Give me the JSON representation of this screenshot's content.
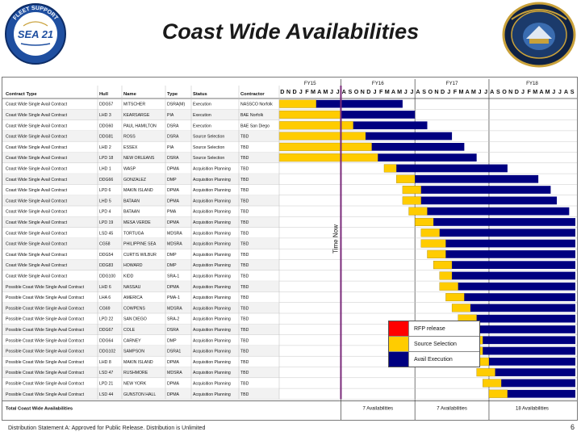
{
  "title": "Coast Wide Availabilities",
  "logos": {
    "left": {
      "top_text": "FLEET SUPPORT",
      "center_text": "SEA 21",
      "bottom_text": "INACTIVE SHIPS",
      "side_text": "INTERNATIONAL"
    },
    "right": {
      "name": "navsea-seal-icon"
    }
  },
  "table": {
    "headers": [
      "Contract Type",
      "Hull",
      "Name",
      "Type",
      "Status",
      "Contractor"
    ],
    "fiscal_years": [
      {
        "label": "FY15",
        "start": 0
      },
      {
        "label": "FY16",
        "start": 10
      },
      {
        "label": "FY17",
        "start": 22
      },
      {
        "label": "FY18",
        "start": 34
      }
    ],
    "months": [
      "D",
      "N",
      "D",
      "J",
      "F",
      "M",
      "A",
      "M",
      "J",
      "J",
      "A",
      "S",
      "O",
      "N",
      "D",
      "J",
      "F",
      "M",
      "A",
      "M",
      "J",
      "J",
      "A",
      "S",
      "O",
      "N",
      "D",
      "J",
      "F",
      "M",
      "A",
      "M",
      "J",
      "J",
      "A",
      "S",
      "O",
      "N",
      "D",
      "J",
      "F",
      "M",
      "A",
      "M",
      "J",
      "J",
      "A",
      "S"
    ],
    "time_now_label": "Time Now",
    "time_now_col": 10,
    "rows": [
      {
        "contract": "Coast Wide Single Avail Contract",
        "hull": "DDG57",
        "name": "MITSCHER",
        "type": "DSRA(M)",
        "status": "Execution",
        "contractor": "NASSCO Norfolk",
        "y": 0,
        "o": 6,
        "n": 14
      },
      {
        "contract": "Coast Wide Single Avail Contract",
        "hull": "LHD 3",
        "name": "KEARSARGE",
        "type": "PIA",
        "status": "Execution",
        "contractor": "BAE Norfolk",
        "y": 0,
        "o": 10,
        "n": 12
      },
      {
        "contract": "Coast Wide Single Avail Contract",
        "hull": "DDG60",
        "name": "PAUL HAMILTON",
        "type": "DSRA",
        "status": "Execution",
        "contractor": "BAE San Diego",
        "y": 0,
        "o": 12,
        "n": 12
      },
      {
        "contract": "Coast Wide Single Avail Contract",
        "hull": "DDG81",
        "name": "ROSS",
        "type": "DSRA",
        "status": "Source Selection",
        "contractor": "TBD",
        "y": 0,
        "o": 14,
        "n": 14
      },
      {
        "contract": "Coast Wide Single Avail Contract",
        "hull": "LHD 2",
        "name": "ESSEX",
        "type": "PIA",
        "status": "Source Selection",
        "contractor": "TBD",
        "y": 0,
        "o": 15,
        "n": 15
      },
      {
        "contract": "Coast Wide Single Avail Contract",
        "hull": "LPD 18",
        "name": "NEW ORLEANS",
        "type": "DSRA",
        "status": "Source Selection",
        "contractor": "TBD",
        "y": 0,
        "o": 16,
        "n": 16
      },
      {
        "contract": "Coast Wide Single Avail Contract",
        "hull": "LHD 1",
        "name": "WASP",
        "type": "DPMA",
        "status": "Acquisition Planning",
        "contractor": "TBD",
        "y": 17,
        "o": 19,
        "n": 18
      },
      {
        "contract": "Coast Wide Single Avail Contract",
        "hull": "DDG66",
        "name": "GONZALEZ",
        "type": "DMP",
        "status": "Acquisition Planning",
        "contractor": "TBD",
        "y": 19,
        "o": 22,
        "n": 20
      },
      {
        "contract": "Coast Wide Single Avail Contract",
        "hull": "LPD 6",
        "name": "MAKIN ISLAND",
        "type": "DPMA",
        "status": "Acquisition Planning",
        "contractor": "TBD",
        "y": 20,
        "o": 23,
        "n": 21
      },
      {
        "contract": "Coast Wide Single Avail Contract",
        "hull": "LHD 5",
        "name": "BATAAN",
        "type": "DPMA",
        "status": "Acquisition Planning",
        "contractor": "TBD",
        "y": 20,
        "o": 23,
        "n": 22
      },
      {
        "contract": "Coast Wide Single Avail Contract",
        "hull": "LPD 4",
        "name": "BATAAN",
        "type": "PMA",
        "status": "Acquisition Planning",
        "contractor": "TBD",
        "y": 21,
        "o": 24,
        "n": 23
      },
      {
        "contract": "Coast Wide Single Avail Contract",
        "hull": "LPD 19",
        "name": "MESA VERDE",
        "type": "DPMA",
        "status": "Acquisition Planning",
        "contractor": "TBD",
        "y": 22,
        "o": 25,
        "n": 23
      },
      {
        "contract": "Coast Wide Single Avail Contract",
        "hull": "LSD 45",
        "name": "TORTUGA",
        "type": "MDSRA",
        "status": "Acquisition Planning",
        "contractor": "TBD",
        "y": 23,
        "o": 26,
        "n": 24
      },
      {
        "contract": "Coast Wide Single Avail Contract",
        "hull": "CG58",
        "name": "PHILIPPINE SEA",
        "type": "MDSRA",
        "status": "Acquisition Planning",
        "contractor": "TBD",
        "y": 23,
        "o": 27,
        "n": 26
      },
      {
        "contract": "Coast Wide Single Avail Contract",
        "hull": "DDG54",
        "name": "CURTIS WILBUR",
        "type": "DMP",
        "status": "Acquisition Planning",
        "contractor": "TBD",
        "y": 24,
        "o": 27,
        "n": 28
      },
      {
        "contract": "Coast Wide Single Avail Contract",
        "hull": "DDG83",
        "name": "HOWARD",
        "type": "DMP",
        "status": "Acquisition Planning",
        "contractor": "TBD",
        "y": 25,
        "o": 28,
        "n": 28
      },
      {
        "contract": "Coast Wide Single Avail Contract",
        "hull": "DDG100",
        "name": "KIDD",
        "type": "SRA-1",
        "status": "Acquisition Planning",
        "contractor": "TBD",
        "y": 26,
        "o": 28,
        "n": 28
      },
      {
        "contract": "Possible Coast Wide Single Avail Contract",
        "hull": "LHD 6",
        "name": "NASSAU",
        "type": "DPMA",
        "status": "Acquisition Planning",
        "contractor": "TBD",
        "y": 26,
        "o": 29,
        "n": 28
      },
      {
        "contract": "Possible Coast Wide Single Avail Contract",
        "hull": "LHA 6",
        "name": "AMERICA",
        "type": "PMA-1",
        "status": "Acquisition Planning",
        "contractor": "TBD",
        "y": 27,
        "o": 30,
        "n": 28
      },
      {
        "contract": "Possible Coast Wide Single Avail Contract",
        "hull": "CG69",
        "name": "COWPENS",
        "type": "MDSRA",
        "status": "Acquisition Planning",
        "contractor": "TBD",
        "y": 28,
        "o": 31,
        "n": 28
      },
      {
        "contract": "Possible Coast Wide Single Avail Contract",
        "hull": "LPD 22",
        "name": "SAN DIEGO",
        "type": "SRA-2",
        "status": "Acquisition Planning",
        "contractor": "TBD",
        "y": 29,
        "o": 32,
        "n": 28
      },
      {
        "contract": "Possible Coast Wide Single Avail Contract",
        "hull": "DDG67",
        "name": "COLE",
        "type": "DSRA",
        "status": "Acquisition Planning",
        "contractor": "TBD",
        "y": 29,
        "o": 32,
        "n": 28
      },
      {
        "contract": "Possible Coast Wide Single Avail Contract",
        "hull": "DDG64",
        "name": "CARNEY",
        "type": "DMP",
        "status": "Acquisition Planning",
        "contractor": "TBD",
        "y": 30,
        "o": 33,
        "n": 28
      },
      {
        "contract": "Possible Coast Wide Single Avail Contract",
        "hull": "DDG102",
        "name": "SAMPSON",
        "type": "DSRA1",
        "status": "Acquisition Planning",
        "contractor": "TBD",
        "y": 30,
        "o": 33,
        "n": 28
      },
      {
        "contract": "Possible Coast Wide Single Avail Contract",
        "hull": "LHD 8",
        "name": "MAKIN ISLAND",
        "type": "DPMA",
        "status": "Acquisition Planning",
        "contractor": "TBD",
        "y": 31,
        "o": 34,
        "n": 28
      },
      {
        "contract": "Possible Coast Wide Single Avail Contract",
        "hull": "LSD 47",
        "name": "RUSHMORE",
        "type": "MDSRA",
        "status": "Acquisition Planning",
        "contractor": "TBD",
        "y": 32,
        "o": 35,
        "n": 28
      },
      {
        "contract": "Possible Coast Wide Single Avail Contract",
        "hull": "LPD 21",
        "name": "NEW YORK",
        "type": "DPMA",
        "status": "Acquisition Planning",
        "contractor": "TBD",
        "y": 33,
        "o": 36,
        "n": 28
      },
      {
        "contract": "Possible Coast Wide Single Avail Contract",
        "hull": "LSD 44",
        "name": "GUNSTON HALL",
        "type": "DPMA",
        "status": "Acquisition Planning",
        "contractor": "TBD",
        "y": 34,
        "o": 37,
        "n": 28
      }
    ],
    "total": {
      "label": "Total Coast Wide Availabilities",
      "values": [
        "7 Availabilities",
        "7 Availabilities",
        "18 Availabilities"
      ]
    }
  },
  "legend": [
    {
      "label": "RFP release",
      "color": "#ff0000"
    },
    {
      "label": "Source Selection",
      "color": "#ffcc00"
    },
    {
      "label": "Avail Execution",
      "color": "#000080"
    }
  ],
  "colors": {
    "rfp": "#ff0000",
    "source": "#ffcc00",
    "exec": "#000080",
    "time_now": "#7a2a7a"
  },
  "footer": "Distribution Statement A: Approved for Public Release. Distribution is Unlimited",
  "page_number": "6"
}
